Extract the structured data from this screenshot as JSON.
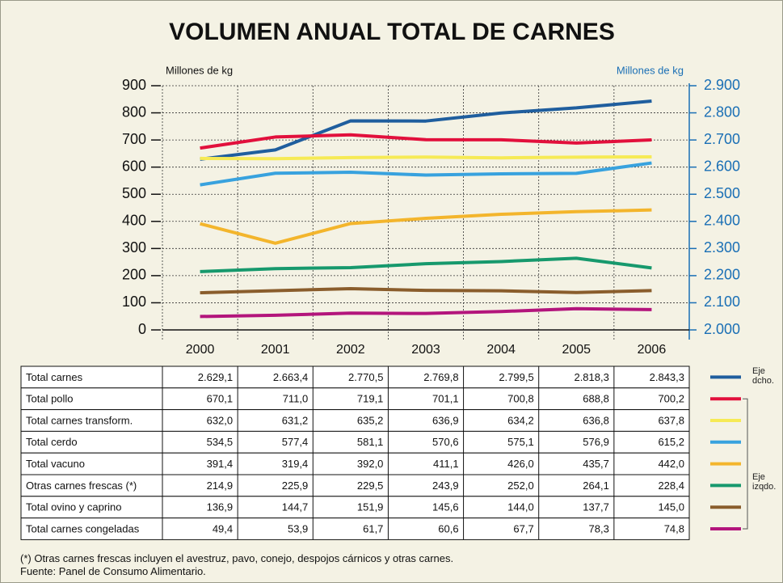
{
  "chart_data": {
    "type": "line",
    "title": "VOLUMEN ANUAL TOTAL DE CARNES",
    "ylabel": "Millones de kg",
    "y2label": "Millones de kg",
    "categories": [
      "2000",
      "2001",
      "2002",
      "2003",
      "2004",
      "2005",
      "2006"
    ],
    "ylim": [
      0,
      900
    ],
    "yticks": [
      0,
      100,
      200,
      300,
      400,
      500,
      600,
      700,
      800,
      900
    ],
    "y2lim": [
      2000,
      2900
    ],
    "y2ticks": [
      {
        "value": 2000,
        "label": "2.000"
      },
      {
        "value": 2100,
        "label": "2.100"
      },
      {
        "value": 2200,
        "label": "2.200"
      },
      {
        "value": 2300,
        "label": "2.300"
      },
      {
        "value": 2400,
        "label": "2.400"
      },
      {
        "value": 2500,
        "label": "2.500"
      },
      {
        "value": 2600,
        "label": "2.600"
      },
      {
        "value": 2700,
        "label": "2.700"
      },
      {
        "value": 2800,
        "label": "2.800"
      },
      {
        "value": 2900,
        "label": "2.900"
      }
    ],
    "grid": true,
    "series": [
      {
        "name": "Total carnes",
        "color": "#1f5e9e",
        "axis": "y2",
        "values": [
          2629.1,
          2663.4,
          2770.5,
          2769.8,
          2799.5,
          2818.3,
          2843.3
        ],
        "value_labels": [
          "2.629,1",
          "2.663,4",
          "2.770,5",
          "2.769,8",
          "2.799,5",
          "2.818,3",
          "2.843,3"
        ]
      },
      {
        "name": "Total pollo",
        "color": "#e2103c",
        "values": [
          670.1,
          711.0,
          719.1,
          701.1,
          700.8,
          688.8,
          700.2
        ],
        "value_labels": [
          "670,1",
          "711,0",
          "719,1",
          "701,1",
          "700,8",
          "688,8",
          "700,2"
        ]
      },
      {
        "name": "Total carnes transform.",
        "color": "#f6ea55",
        "values": [
          632.0,
          631.2,
          635.2,
          636.9,
          634.2,
          636.8,
          637.8
        ],
        "value_labels": [
          "632,0",
          "631,2",
          "635,2",
          "636,9",
          "634,2",
          "636,8",
          "637,8"
        ]
      },
      {
        "name": "Total cerdo",
        "color": "#38a2de",
        "values": [
          534.5,
          577.4,
          581.1,
          570.6,
          575.1,
          576.9,
          615.2
        ],
        "value_labels": [
          "534,5",
          "577,4",
          "581,1",
          "570,6",
          "575,1",
          "576,9",
          "615,2"
        ]
      },
      {
        "name": "Total vacuno",
        "color": "#f3b52c",
        "values": [
          391.4,
          319.4,
          392.0,
          411.1,
          426.0,
          435.7,
          442.0
        ],
        "value_labels": [
          "391,4",
          "319,4",
          "392,0",
          "411,1",
          "426,0",
          "435,7",
          "442,0"
        ]
      },
      {
        "name": "Otras carnes frescas (*)",
        "color": "#17996d",
        "values": [
          214.9,
          225.9,
          229.5,
          243.9,
          252.0,
          264.1,
          228.4
        ],
        "value_labels": [
          "214,9",
          "225,9",
          "229,5",
          "243,9",
          "252,0",
          "264,1",
          "228,4"
        ]
      },
      {
        "name": "Total ovino y caprino",
        "color": "#8a5d2c",
        "values": [
          136.9,
          144.7,
          151.9,
          145.6,
          144.0,
          137.7,
          145.0
        ],
        "value_labels": [
          "136,9",
          "144,7",
          "151,9",
          "145,6",
          "144,0",
          "137,7",
          "145,0"
        ]
      },
      {
        "name": "Total carnes congeladas",
        "color": "#b3157c",
        "values": [
          49.4,
          53.9,
          61.7,
          60.6,
          67.7,
          78.3,
          74.8
        ],
        "value_labels": [
          "49,4",
          "53,9",
          "61,7",
          "60,6",
          "67,7",
          "78,3",
          "74,8"
        ]
      }
    ],
    "annotations": [
      "Eje dcho.",
      "Eje izqdo."
    ],
    "notes": [
      "(*) Otras carnes frescas incluyen el avestruz, pavo, conejo, despojos cárnicos y otras carnes.",
      "Fuente: Panel de Consumo Alimentario."
    ]
  }
}
